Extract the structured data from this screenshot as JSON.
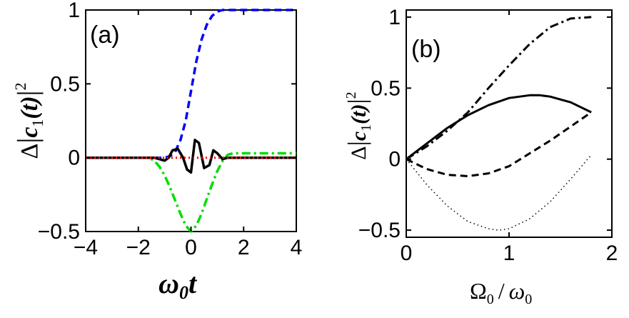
{
  "chart_data": [
    {
      "type": "line",
      "panel_label": "(a)",
      "xlabel_main": "ω",
      "xlabel_sub": "0",
      "xlabel_tail": "t",
      "ylabel_prefix": "Δ",
      "ylabel_c": "c",
      "ylabel_sub": "1",
      "ylabel_arg": "(t)",
      "ylabel_sup": "2",
      "xlim": [
        -4,
        4
      ],
      "ylim": [
        -0.5,
        1
      ],
      "xticks": [
        -4,
        -2,
        0,
        2,
        4
      ],
      "yticks": [
        -0.5,
        0,
        0.5,
        1
      ],
      "xtick_labels": [
        "−4",
        "−2",
        "0",
        "2",
        "4"
      ],
      "ytick_labels": [
        "−0.5",
        "0",
        "0.5",
        "1"
      ],
      "grid": false,
      "series": [
        {
          "style": "dashed",
          "color": "#0000ff",
          "x": [
            -4,
            -1,
            -0.8,
            -0.6,
            -0.4,
            -0.2,
            0,
            0.2,
            0.4,
            0.6,
            0.8,
            1.0,
            1.2,
            1.5,
            2,
            4
          ],
          "y": [
            0,
            0,
            0.01,
            0.04,
            0.12,
            0.25,
            0.45,
            0.65,
            0.8,
            0.9,
            0.96,
            0.99,
            1.0,
            1.0,
            1.0,
            1.0
          ]
        },
        {
          "style": "dash-dot",
          "color": "#00dd00",
          "x": [
            -4,
            -1.6,
            -1.4,
            -1.2,
            -1.0,
            -0.8,
            -0.6,
            -0.4,
            -0.2,
            0,
            0.2,
            0.4,
            0.6,
            0.8,
            1.0,
            1.2,
            1.4,
            1.6,
            2,
            4
          ],
          "y": [
            0,
            0,
            -0.02,
            -0.06,
            -0.12,
            -0.2,
            -0.29,
            -0.38,
            -0.46,
            -0.5,
            -0.46,
            -0.38,
            -0.28,
            -0.18,
            -0.09,
            -0.02,
            0.02,
            0.03,
            0.03,
            0.03
          ]
        },
        {
          "style": "solid",
          "color": "#000000",
          "x": [
            -4,
            -1.4,
            -1.2,
            -1.0,
            -0.85,
            -0.7,
            -0.5,
            -0.3,
            -0.15,
            0,
            0.15,
            0.3,
            0.5,
            0.7,
            0.85,
            1.0,
            1.2,
            1.4,
            4
          ],
          "y": [
            0,
            0,
            -0.01,
            -0.02,
            0.0,
            0.05,
            0.06,
            0.0,
            -0.08,
            -0.1,
            0.12,
            0.1,
            -0.07,
            -0.05,
            0.05,
            0.03,
            -0.01,
            0,
            0
          ]
        },
        {
          "style": "dotted",
          "color": "#ff0000",
          "x": [
            -4,
            4
          ],
          "y": [
            0,
            0
          ]
        }
      ]
    },
    {
      "type": "line",
      "panel_label": "(b)",
      "xlabel_num": "Ω",
      "xlabel_num_sub": "0",
      "xlabel_slash": "/",
      "xlabel_den": "ω",
      "xlabel_den_sub": "0",
      "ylabel_prefix": "Δ",
      "ylabel_c": "c",
      "ylabel_sub": "1",
      "ylabel_arg": "(t)",
      "ylabel_sup": "2",
      "xlim": [
        0,
        2
      ],
      "ylim": [
        -0.55,
        1.05
      ],
      "xticks": [
        0,
        1,
        2
      ],
      "yticks": [
        -0.5,
        0,
        0.5,
        1
      ],
      "xtick_labels": [
        "0",
        "1",
        "2"
      ],
      "ytick_labels": [
        "−0.5",
        "0",
        "0.5",
        "1"
      ],
      "grid": false,
      "series": [
        {
          "style": "dash-dot",
          "color": "#000000",
          "x": [
            0,
            0.2,
            0.4,
            0.6,
            0.8,
            1.0,
            1.2,
            1.4,
            1.6,
            1.8
          ],
          "y": [
            0,
            0.09,
            0.2,
            0.33,
            0.5,
            0.66,
            0.81,
            0.93,
            0.99,
            1.0
          ]
        },
        {
          "style": "solid",
          "color": "#000000",
          "x": [
            0,
            0.2,
            0.4,
            0.6,
            0.8,
            1.0,
            1.2,
            1.3,
            1.4,
            1.6,
            1.8
          ],
          "y": [
            0,
            0.11,
            0.22,
            0.31,
            0.38,
            0.43,
            0.45,
            0.45,
            0.44,
            0.4,
            0.33
          ]
        },
        {
          "style": "dashed",
          "color": "#000000",
          "x": [
            0,
            0.2,
            0.4,
            0.6,
            0.8,
            1.0,
            1.2,
            1.4,
            1.6,
            1.8
          ],
          "y": [
            0,
            -0.07,
            -0.11,
            -0.12,
            -0.1,
            -0.05,
            0.04,
            0.13,
            0.23,
            0.33
          ]
        },
        {
          "style": "dotted",
          "color": "#000000",
          "x": [
            0,
            0.2,
            0.4,
            0.6,
            0.8,
            0.9,
            1.0,
            1.2,
            1.4,
            1.6,
            1.8
          ],
          "y": [
            0,
            -0.18,
            -0.33,
            -0.44,
            -0.49,
            -0.5,
            -0.49,
            -0.42,
            -0.3,
            -0.14,
            0.03
          ]
        }
      ]
    }
  ]
}
